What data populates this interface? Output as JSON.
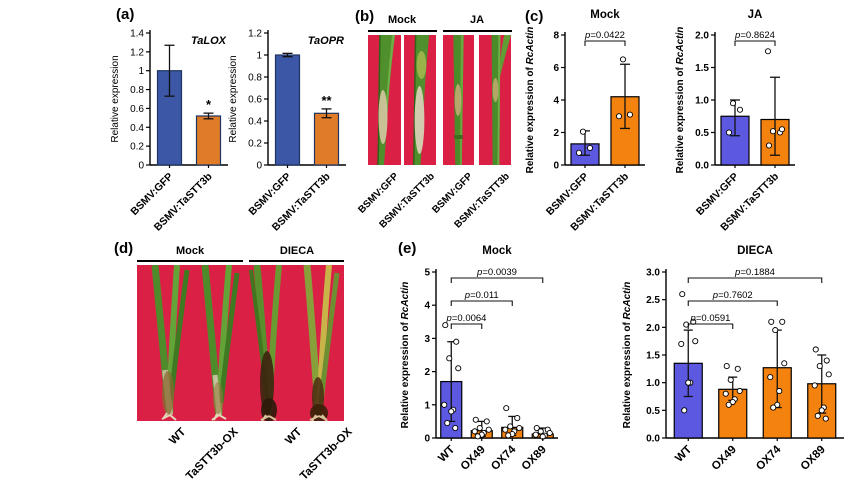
{
  "figure": {
    "background": "#ffffff"
  },
  "panels": {
    "a": {
      "label": "(a)"
    },
    "b": {
      "label": "(b)",
      "groups": [
        "Mock",
        "JA"
      ],
      "strip_labels": [
        "BSMV:GFP",
        "BSMV:TaSTT3b",
        "BSMV:GFP",
        "BSMV:TaSTT3b"
      ]
    },
    "c": {
      "label": "(c)"
    },
    "d": {
      "label": "(d)",
      "groups": [
        "Mock",
        "DIECA"
      ],
      "plant_labels": [
        "WT",
        "TaSTT3b-OX",
        "WT",
        "TaSTT3b-OX"
      ]
    },
    "e": {
      "label": "(e)"
    }
  },
  "colors": {
    "panel_a_blue": "#3b57a5",
    "panel_a_orange": "#e07b28",
    "panel_ce_blue": "#5c58e0",
    "panel_ce_orange": "#f4820f",
    "bar_border_a": "#1e3560",
    "bar_border_ce": "#000000",
    "photo_red": "#da2145",
    "stem_green": "#4f8f2c"
  },
  "chart_data": [
    {
      "id": "a1",
      "type": "bar",
      "title": "TaLOX",
      "title_italic": true,
      "title_inside": true,
      "ylabel": "Relative expression",
      "ylabel_italic": "",
      "ymax": 1.4,
      "yticks": [
        "0",
        "0.2",
        "0.4",
        "0.6",
        "0.8",
        "1",
        "1.2",
        "1.4"
      ],
      "bar_border": "#1e3560",
      "categories": [
        "BSMV:GFP",
        "BSMV:TaSTT3b"
      ],
      "bars": [
        {
          "label": "BSMV:GFP",
          "value": 1.0,
          "err": [
            0.73,
            1.27
          ],
          "color": "#3b57a5"
        },
        {
          "label": "BSMV:TaSTT3b",
          "value": 0.52,
          "err": [
            0.49,
            0.55
          ],
          "color": "#e07b28",
          "sig": "*"
        }
      ],
      "brackets": []
    },
    {
      "id": "a2",
      "type": "bar",
      "title": "TaOPR",
      "title_italic": true,
      "title_inside": true,
      "ylabel": "Relative expression",
      "ylabel_italic": "",
      "ymax": 1.2,
      "yticks": [
        "0",
        "0.2",
        "0.4",
        "0.6",
        "0.8",
        "1",
        "1.2"
      ],
      "bar_border": "#1e3560",
      "categories": [
        "BSMV:GFP",
        "BSMV:TaSTT3b"
      ],
      "bars": [
        {
          "label": "BSMV:GFP",
          "value": 1.0,
          "err": [
            0.985,
            1.015
          ],
          "color": "#3b57a5"
        },
        {
          "label": "BSMV:TaSTT3b",
          "value": 0.47,
          "err": [
            0.43,
            0.51
          ],
          "color": "#e07b28",
          "sig": "**"
        }
      ],
      "brackets": []
    },
    {
      "id": "c1",
      "type": "bar",
      "title": "Mock",
      "title_italic": false,
      "title_inside": false,
      "ylabel": "Relative expression of ",
      "ylabel_italic": "RcActin",
      "ymax": 8,
      "yticks": [
        "0",
        "2",
        "4",
        "6",
        "8"
      ],
      "bar_border": "#000000",
      "categories": [
        "BSMV:GFP",
        "BSMV:TaSTT3b"
      ],
      "bars": [
        {
          "label": "BSMV:GFP",
          "value": 1.3,
          "err": [
            0.6,
            2.1
          ],
          "points": [
            0.75,
            1.05,
            2.05
          ],
          "color": "#5c58e0"
        },
        {
          "label": "BSMV:TaSTT3b",
          "value": 4.2,
          "err": [
            2.25,
            6.2
          ],
          "points": [
            3.0,
            3.1,
            6.5
          ],
          "color": "#f4820f"
        }
      ],
      "brackets": [
        {
          "pair": [
            0,
            1
          ],
          "label": "p=0.0422"
        }
      ]
    },
    {
      "id": "c2",
      "type": "bar",
      "title": "JA",
      "title_italic": false,
      "title_inside": false,
      "ylabel": "Relative expression of ",
      "ylabel_italic": "RcActin",
      "ymax": 2.0,
      "yticks": [
        "0.0",
        "0.5",
        "1.0",
        "1.5",
        "2.0"
      ],
      "bar_border": "#000000",
      "categories": [
        "BSMV:GFP",
        "BSMV:TaSTT3b"
      ],
      "bars": [
        {
          "label": "BSMV:GFP",
          "value": 0.75,
          "err": [
            0.45,
            1.0
          ],
          "points": [
            0.5,
            0.85,
            0.95
          ],
          "color": "#5c58e0"
        },
        {
          "label": "BSMV:TaSTT3b",
          "value": 0.7,
          "err": [
            0.15,
            1.35
          ],
          "points": [
            0.3,
            0.5,
            0.52,
            0.55,
            1.75
          ],
          "color": "#f4820f"
        }
      ],
      "brackets": [
        {
          "pair": [
            0,
            1
          ],
          "label": "p=0.8624"
        }
      ]
    },
    {
      "id": "e1",
      "type": "bar",
      "title": "Mock",
      "title_italic": false,
      "title_inside": false,
      "ylabel": "Relative expression of ",
      "ylabel_italic": "RcActin",
      "ymax": 5,
      "yticks": [
        "0",
        "1",
        "2",
        "3",
        "4",
        "5"
      ],
      "bar_border": "#000000",
      "categories": [
        "WT",
        "OX49",
        "OX74",
        "OX89"
      ],
      "bars": [
        {
          "label": "WT",
          "value": 1.7,
          "err": [
            0.5,
            2.9
          ],
          "points": [
            3.4,
            2.9,
            2.4,
            2.1,
            1.0,
            0.85,
            0.8,
            0.45,
            0.3
          ],
          "color": "#5c58e0"
        },
        {
          "label": "OX49",
          "value": 0.22,
          "err": [
            0.05,
            0.5
          ],
          "points": [
            0.55,
            0.5,
            0.3,
            0.25,
            0.2,
            0.15,
            0.1,
            0.05
          ],
          "color": "#f4820f"
        },
        {
          "label": "OX74",
          "value": 0.32,
          "err": [
            0.08,
            0.65
          ],
          "points": [
            0.9,
            0.6,
            0.35,
            0.3,
            0.25,
            0.2,
            0.12,
            0.08
          ],
          "color": "#f4820f"
        },
        {
          "label": "OX89",
          "value": 0.12,
          "err": [
            0.02,
            0.3
          ],
          "points": [
            0.3,
            0.25,
            0.2,
            0.15,
            0.1,
            0.07,
            0.04
          ],
          "color": "#f4820f"
        }
      ],
      "brackets": [
        {
          "pair": [
            0,
            1
          ],
          "label": "p=0.0064"
        },
        {
          "pair": [
            0,
            2
          ],
          "label": "p=0.011"
        },
        {
          "pair": [
            0,
            3
          ],
          "label": "p=0.0039"
        }
      ]
    },
    {
      "id": "e2",
      "type": "bar",
      "title": "DIECA",
      "title_italic": false,
      "title_inside": false,
      "ylabel": "Relative expression of ",
      "ylabel_italic": "RcActin",
      "ymax": 3.0,
      "yticks": [
        "0.0",
        "0.5",
        "1.0",
        "1.5",
        "2.0",
        "2.5",
        "3.0"
      ],
      "bar_border": "#000000",
      "categories": [
        "WT",
        "OX49",
        "OX74",
        "OX89"
      ],
      "bars": [
        {
          "label": "WT",
          "value": 1.35,
          "err": [
            0.75,
            1.95
          ],
          "points": [
            2.6,
            2.1,
            2.05,
            1.75,
            1.7,
            1.0,
            1.0,
            0.5
          ],
          "color": "#5c58e0"
        },
        {
          "label": "OX49",
          "value": 0.88,
          "err": [
            0.68,
            1.1
          ],
          "points": [
            1.3,
            1.25,
            1.05,
            0.85,
            0.8,
            0.7,
            0.65,
            0.6
          ],
          "color": "#f4820f"
        },
        {
          "label": "OX74",
          "value": 1.27,
          "err": [
            0.55,
            1.95
          ],
          "points": [
            2.1,
            2.1,
            1.95,
            1.35,
            1.1,
            0.85,
            0.6,
            0.55
          ],
          "color": "#f4820f"
        },
        {
          "label": "OX89",
          "value": 0.98,
          "err": [
            0.45,
            1.5
          ],
          "points": [
            1.6,
            1.4,
            1.3,
            1.15,
            0.95,
            0.55,
            0.5,
            0.4,
            0.35
          ],
          "color": "#f4820f"
        }
      ],
      "brackets": [
        {
          "pair": [
            0,
            1
          ],
          "label": "p=0.0591"
        },
        {
          "pair": [
            0,
            2
          ],
          "label": "p=0.7602"
        },
        {
          "pair": [
            0,
            3
          ],
          "label": "p=0.1884"
        }
      ]
    }
  ]
}
